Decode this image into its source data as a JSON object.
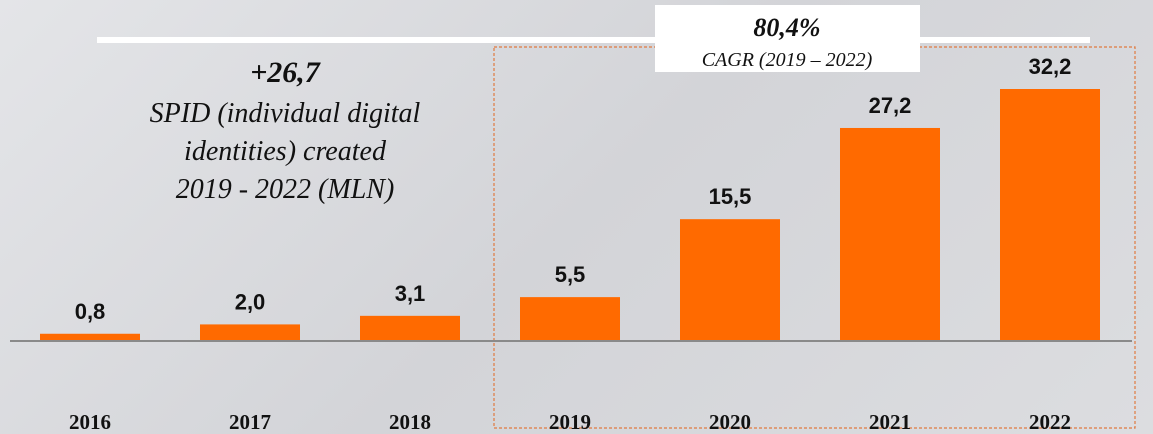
{
  "chart_data": {
    "type": "bar",
    "categories": [
      "2016",
      "2017",
      "2018",
      "2019",
      "2020",
      "2021",
      "2022"
    ],
    "values": [
      0.8,
      2.0,
      3.1,
      5.5,
      15.5,
      27.2,
      32.2
    ],
    "value_labels": [
      "0,8",
      "2,0",
      "3,1",
      "5,5",
      "15,5",
      "27,2",
      "32,2"
    ],
    "color": "#ff6a00",
    "annotations": {
      "total": "+26,7",
      "total_text": [
        "SPID (individual digital",
        "identities) created",
        "2019 - 2022 (MLN)"
      ],
      "cagr": "80,4%",
      "cagr_text": "CAGR  (2019 – 2022)"
    }
  }
}
